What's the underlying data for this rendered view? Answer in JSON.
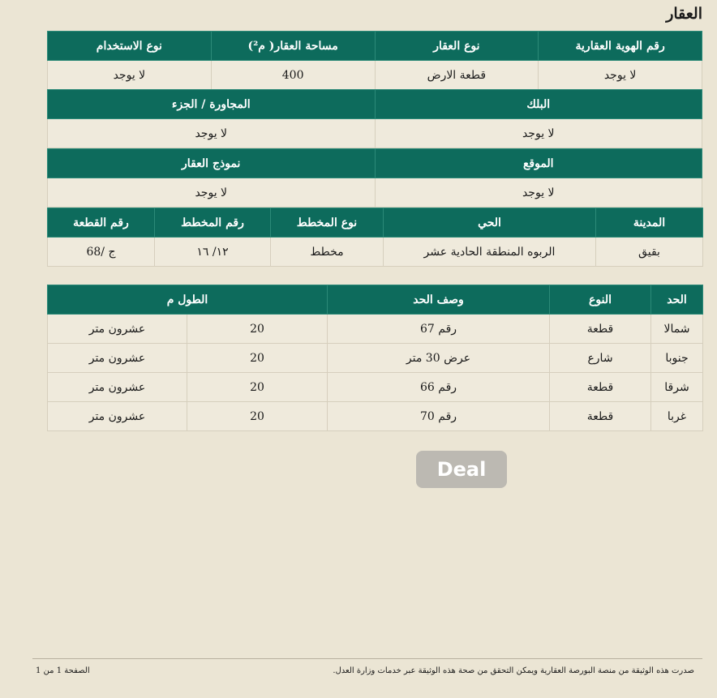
{
  "title": "العقار",
  "property": {
    "headers": [
      "رقم الهوية العقارية",
      "نوع العقار",
      "مساحة العقار( م²)",
      "نوع الاستخدام"
    ],
    "values": [
      "لا يوجد",
      "قطعة الارض",
      "400",
      "لا يوجد"
    ]
  },
  "block": {
    "headers": [
      "البلك",
      "المجاورة / الجزء"
    ],
    "values": [
      "لا يوجد",
      "لا يوجد"
    ]
  },
  "location": {
    "headers": [
      "الموقع",
      "نموذج العقار"
    ],
    "values": [
      "لا يوجد",
      "لا يوجد"
    ]
  },
  "address": {
    "headers": [
      "المدينة",
      "الحي",
      "نوع المخطط",
      "رقم المخطط",
      "رقم القطعة"
    ],
    "values": [
      "بقيق",
      "الربوه المنطقة الحادية عشر",
      "مخطط",
      "١٢/ ١٦",
      "ج /68"
    ]
  },
  "boundaries": {
    "headers": [
      "الحد",
      "النوع",
      "وصف الحد",
      "الطول م"
    ],
    "rows": [
      [
        "شمالا",
        "قطعة",
        "رقم 67",
        "20",
        "عشرون متر"
      ],
      [
        "جنوبا",
        "شارع",
        "عرض 30 متر",
        "20",
        "عشرون متر"
      ],
      [
        "شرقا",
        "قطعة",
        "رقم 66",
        "20",
        "عشرون متر"
      ],
      [
        "غربا",
        "قطعة",
        "رقم 70",
        "20",
        "عشرون متر"
      ]
    ]
  },
  "footer": {
    "note": "صدرت هذه الوثيقة من منصة البورصة العقارية ويمكن التحقق من صحة هذه الوثيقة عبر خدمات وزارة العدل.",
    "page": "الصفحة 1 من 1"
  },
  "watermark": "Deal",
  "colors": {
    "header": "#0d6b5c",
    "background": "#ebe5d4"
  }
}
